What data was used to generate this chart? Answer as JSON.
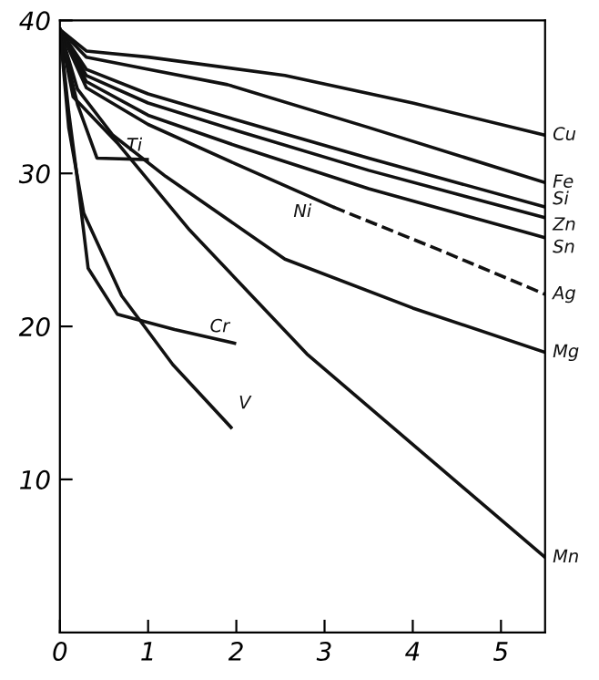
{
  "chart_data": {
    "type": "line",
    "xlim": [
      0,
      5.5
    ],
    "ylim": [
      0,
      40
    ],
    "xticks": [
      0,
      1,
      2,
      3,
      4,
      5
    ],
    "yticks": [
      10,
      20,
      30,
      40
    ],
    "grid": false,
    "legend": false,
    "marker": "none",
    "line_style": "solid",
    "series": [
      {
        "name": "Cu",
        "color": "#111111",
        "x": [
          0,
          0.3,
          1.0,
          2.55,
          4.0,
          5.5
        ],
        "values": [
          39.4,
          38.0,
          37.6,
          36.4,
          34.6,
          32.5
        ]
      },
      {
        "name": "Fe",
        "color": "#111111",
        "x": [
          0,
          0.3,
          1.0,
          1.9,
          3.5,
          5.5
        ],
        "values": [
          39.4,
          37.6,
          36.8,
          35.8,
          33.0,
          29.4
        ]
      },
      {
        "name": "Si",
        "color": "#111111",
        "x": [
          0,
          0.3,
          1.0,
          2.0,
          3.5,
          5.5
        ],
        "values": [
          39.4,
          36.8,
          35.2,
          33.5,
          31.0,
          27.8
        ]
      },
      {
        "name": "Zn",
        "color": "#111111",
        "x": [
          0,
          0.3,
          1.0,
          2.0,
          3.5,
          5.5
        ],
        "values": [
          39.4,
          36.4,
          34.6,
          32.8,
          30.2,
          27.1
        ]
      },
      {
        "name": "Sn",
        "color": "#111111",
        "x": [
          0,
          0.3,
          1.0,
          2.0,
          3.5,
          5.5
        ],
        "values": [
          39.4,
          36.0,
          33.8,
          31.8,
          29.0,
          25.8
        ]
      },
      {
        "name": "Ni",
        "color": "#111111",
        "x": [
          0,
          0.3,
          1.0,
          2.0,
          3.1
        ],
        "values": [
          39.4,
          35.6,
          33.2,
          30.6,
          27.8
        ]
      },
      {
        "name": "Ag",
        "color": "#111111",
        "line_style": "dashed",
        "x": [
          3.1,
          4.3,
          5.5
        ],
        "values": [
          27.8,
          25.0,
          22.1
        ]
      },
      {
        "name": "Mg",
        "color": "#111111",
        "x": [
          0,
          0.2,
          0.6,
          1.2,
          2.55,
          4.0,
          5.5
        ],
        "values": [
          39.4,
          35.5,
          32.5,
          29.8,
          24.4,
          21.2,
          18.3
        ]
      },
      {
        "name": "Mn",
        "color": "#111111",
        "x": [
          0,
          0.15,
          0.65,
          1.47,
          2.8,
          4.2,
          5.5
        ],
        "values": [
          39.4,
          35.0,
          32.0,
          26.3,
          18.2,
          11.3,
          4.9
        ]
      },
      {
        "name": "Ti",
        "color": "#111111",
        "x": [
          0,
          0.2,
          0.42,
          0.99
        ],
        "values": [
          39.4,
          34.5,
          31.0,
          30.9
        ]
      },
      {
        "name": "Cr",
        "color": "#111111",
        "x": [
          0,
          0.1,
          0.19,
          0.32,
          0.65,
          1.3,
          1.98
        ],
        "values": [
          39.4,
          34.0,
          30.0,
          23.8,
          20.8,
          19.8,
          18.9
        ]
      },
      {
        "name": "V",
        "color": "#111111",
        "x": [
          0,
          0.1,
          0.27,
          0.7,
          1.28,
          1.94
        ],
        "values": [
          39.4,
          33.0,
          27.4,
          22.0,
          17.5,
          13.4
        ]
      }
    ]
  }
}
